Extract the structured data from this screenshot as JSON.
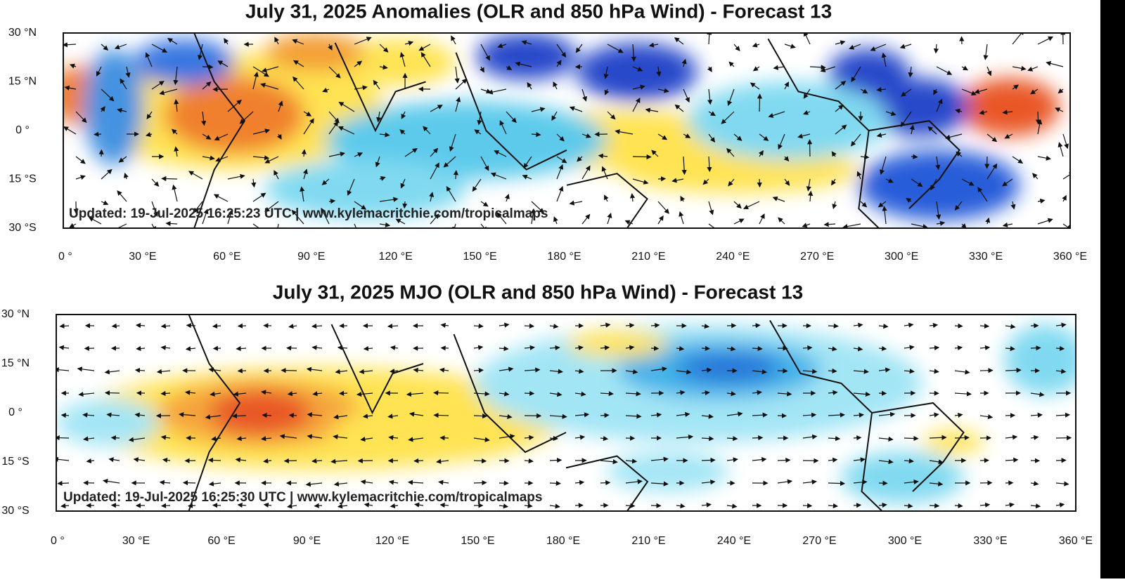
{
  "panels": [
    {
      "title": "July 31, 2025 Anomalies (OLR and 850 hPa Wind) - Forecast 13",
      "lat_labels": [
        "30 °N",
        "15 °N",
        "0 °",
        "15 °S",
        "30 °S"
      ],
      "lon_labels": [
        "0 °",
        "30 °E",
        "60 °E",
        "90 °E",
        "120 °E",
        "150 °E",
        "180 °E",
        "210 °E",
        "240 °E",
        "270 °E",
        "300 °E",
        "330 °E",
        "360 °E"
      ],
      "updated": "Updated: 19-Jul-2025 16:25:23 UTC | www.kylemacritchie.com/tropicalmaps"
    },
    {
      "title": "July 31, 2025 MJO (OLR and 850 hPa Wind) - Forecast 13",
      "lat_labels": [
        "30 °N",
        "15 °N",
        "0 °",
        "15 °S",
        "30 °S"
      ],
      "lon_labels": [
        "0 °",
        "30 °E",
        "60 °E",
        "90 °E",
        "120 °E",
        "150 °E",
        "180 °E",
        "210 °E",
        "240 °E",
        "270 °E",
        "300 °E",
        "330 °E",
        "360 °E"
      ],
      "updated": "Updated: 19-Jul-2025 16:25:30 UTC | www.kylemacritchie.com/tropicalmaps"
    }
  ]
}
